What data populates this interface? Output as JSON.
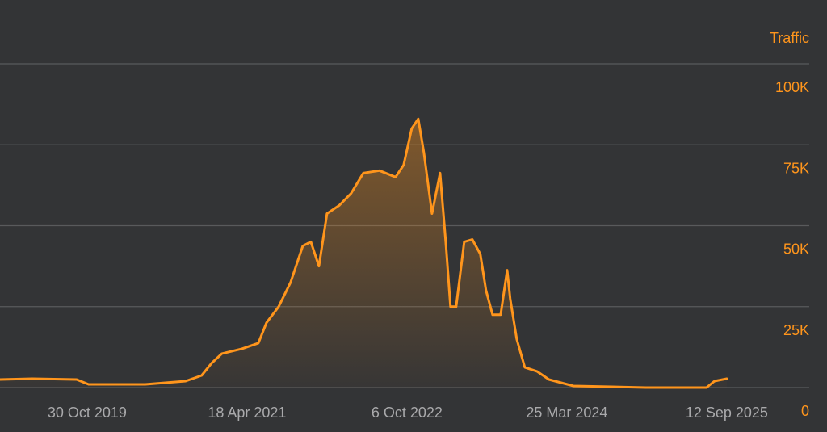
{
  "chart_data": {
    "type": "area",
    "y_axis_label": "Traffic",
    "color": "#ff951c",
    "grid": true,
    "x": [
      "2019-01-11",
      "2019-04-29",
      "2019-09-25",
      "2019-11-04",
      "2020-05-12",
      "2020-09-24",
      "2020-11-17",
      "2020-12-20",
      "2021-01-24",
      "2021-04-01",
      "2021-05-26",
      "2021-06-22",
      "2021-08-02",
      "2021-09-11",
      "2021-10-22",
      "2021-11-18",
      "2021-12-15",
      "2022-01-11",
      "2022-02-21",
      "2022-04-02",
      "2022-05-13",
      "2022-07-06",
      "2022-08-29",
      "2022-09-25",
      "2022-10-22",
      "2022-11-13",
      "2022-12-02",
      "2022-12-29",
      "2023-01-25",
      "2023-02-13",
      "2023-03-01",
      "2023-03-20",
      "2023-04-16",
      "2023-05-13",
      "2023-06-09",
      "2023-06-28",
      "2023-07-20",
      "2023-08-16",
      "2023-09-07",
      "2023-09-17",
      "2023-10-09",
      "2023-11-05",
      "2023-12-16",
      "2024-01-25",
      "2024-04-16",
      "2024-12-15",
      "2025-07-06",
      "2025-08-02",
      "2025-09-12"
    ],
    "values": [
      2500,
      2750,
      2500,
      1000,
      1000,
      2000,
      3750,
      7500,
      10500,
      12000,
      13750,
      20000,
      25000,
      32500,
      43750,
      45000,
      37500,
      53750,
      56250,
      60000,
      66250,
      67000,
      65000,
      68750,
      80000,
      83000,
      72500,
      53750,
      66250,
      45000,
      25000,
      25000,
      45000,
      45750,
      41250,
      30000,
      22500,
      22500,
      36250,
      27500,
      15000,
      6250,
      5000,
      2500,
      500,
      0,
      0,
      2000,
      2750
    ],
    "xlim": [
      "2019-01-11",
      "2026-08-14"
    ],
    "xticks": [
      {
        "value": "2019-10-30",
        "label": "30 Oct 2019"
      },
      {
        "value": "2021-04-18",
        "label": "18 Apr 2021"
      },
      {
        "value": "2022-10-06",
        "label": "6 Oct 2022"
      },
      {
        "value": "2024-03-25",
        "label": "25 Mar 2024"
      },
      {
        "value": "2025-09-12",
        "label": "12 Sep 2025"
      }
    ],
    "ylim": [
      0,
      100000
    ],
    "yticks": [
      0,
      {
        "value": 25000,
        "label": "25K"
      },
      {
        "value": 50000,
        "label": "50K"
      },
      {
        "value": 75000,
        "label": "75K"
      },
      {
        "value": 100000,
        "label": "100K"
      }
    ]
  }
}
